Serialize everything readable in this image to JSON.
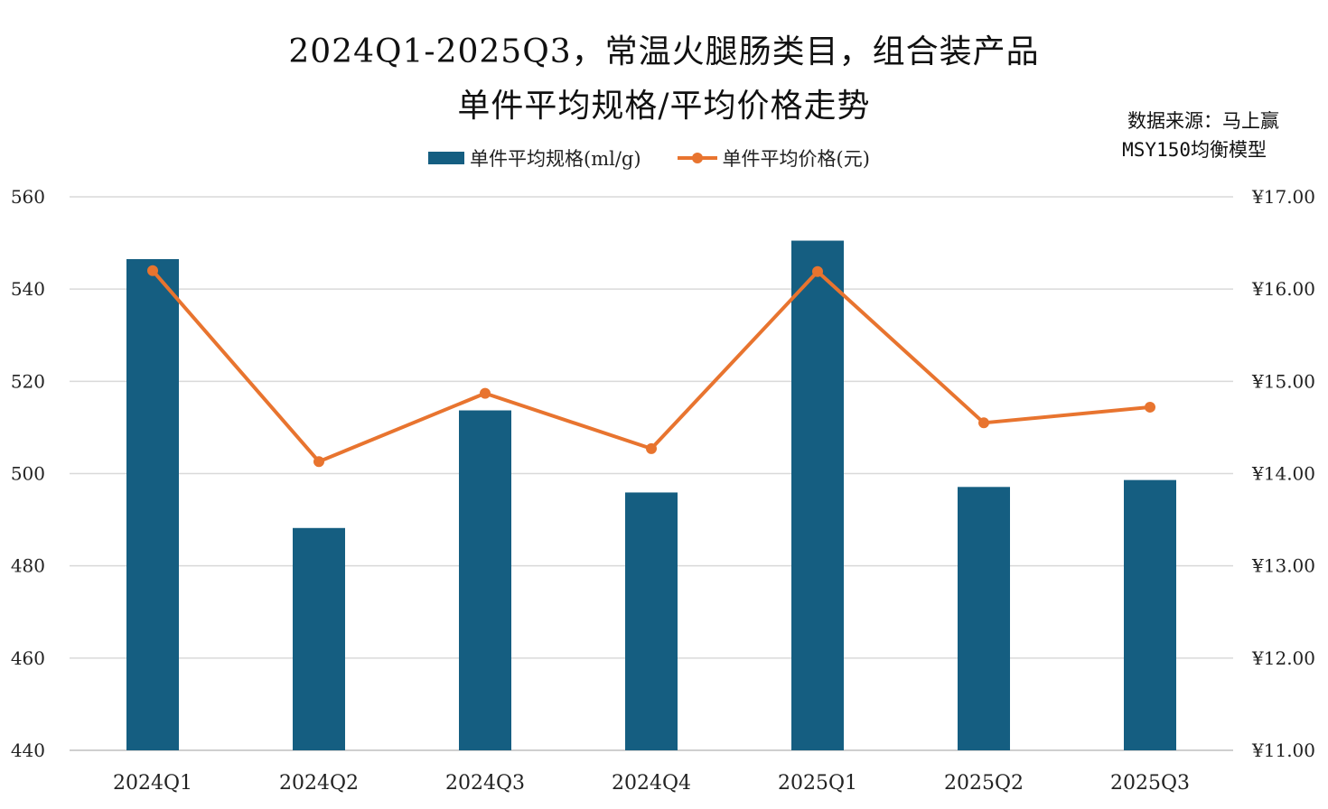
{
  "colors": {
    "bar": "#155E81",
    "line": "#E8742F",
    "grid": "#D9D9D9",
    "axis": "#BFBFBF",
    "text": "#222222"
  },
  "title": {
    "line1": "2024Q1-2025Q3，常温火腿肠类目，组合装产品",
    "line2": "单件平均规格/平均价格走势"
  },
  "source": {
    "line1": "数据来源：马上赢",
    "line2": "MSY150均衡模型"
  },
  "chart_data": {
    "type": "bar",
    "title": "2024Q1-2025Q3，常温火腿肠类目，组合装产品 单件平均规格/平均价格走势",
    "categories": [
      "2024Q1",
      "2024Q2",
      "2024Q3",
      "2024Q4",
      "2025Q1",
      "2025Q2",
      "2025Q3"
    ],
    "series": [
      {
        "name": "单件平均规格(ml/g)",
        "type": "bar",
        "axis": "left",
        "values": [
          546.5,
          488.2,
          513.7,
          495.9,
          550.5,
          497.1,
          498.6
        ]
      },
      {
        "name": "单件平均价格(元)",
        "type": "line",
        "axis": "right",
        "values": [
          16.2,
          14.13,
          14.87,
          14.27,
          16.19,
          14.55,
          14.72
        ]
      }
    ],
    "left_axis": {
      "ylim": [
        440,
        560
      ],
      "ticks": [
        440,
        460,
        480,
        500,
        520,
        540,
        560
      ],
      "tick_labels": [
        "440",
        "460",
        "480",
        "500",
        "520",
        "540",
        "560"
      ]
    },
    "right_axis": {
      "ylim": [
        11,
        17
      ],
      "ticks": [
        11,
        12,
        13,
        14,
        15,
        16,
        17
      ],
      "tick_labels": [
        "¥11.00",
        "¥12.00",
        "¥13.00",
        "¥14.00",
        "¥15.00",
        "¥16.00",
        "¥17.00"
      ]
    },
    "grid": true,
    "legend": "top-center"
  }
}
